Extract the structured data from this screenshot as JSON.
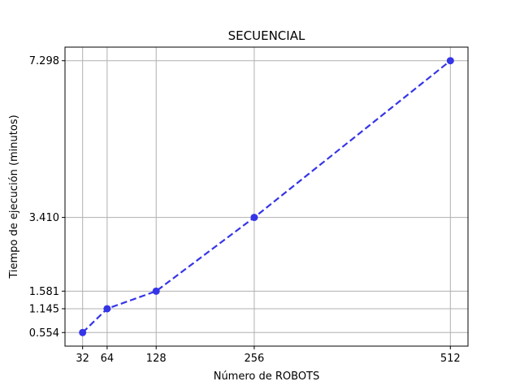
{
  "chart_data": {
    "type": "line",
    "title": "SECUENCIAL",
    "xlabel": "Número de ROBOTS",
    "ylabel": "Tiempo de ejecución (minutos)",
    "x": [
      32,
      64,
      128,
      256,
      512
    ],
    "x_tick_labels": [
      "32",
      "64",
      "128",
      "256",
      "512"
    ],
    "series": [
      {
        "values": [
          0.554,
          1.145,
          1.581,
          3.41,
          7.298
        ]
      }
    ],
    "y_tick_values": [
      0.554,
      1.145,
      1.581,
      3.41,
      7.298
    ],
    "y_tick_labels": [
      "0.554",
      "1.145",
      "1.581",
      "3.410",
      "7.298"
    ],
    "xlim": [
      9,
      535
    ],
    "ylim": [
      0.217,
      7.635
    ],
    "grid": true,
    "line_style": "dashed",
    "marker": "circle",
    "colors": {
      "line": "#3535e8",
      "grid": "#b0b0b0",
      "axis": "#000000"
    }
  }
}
